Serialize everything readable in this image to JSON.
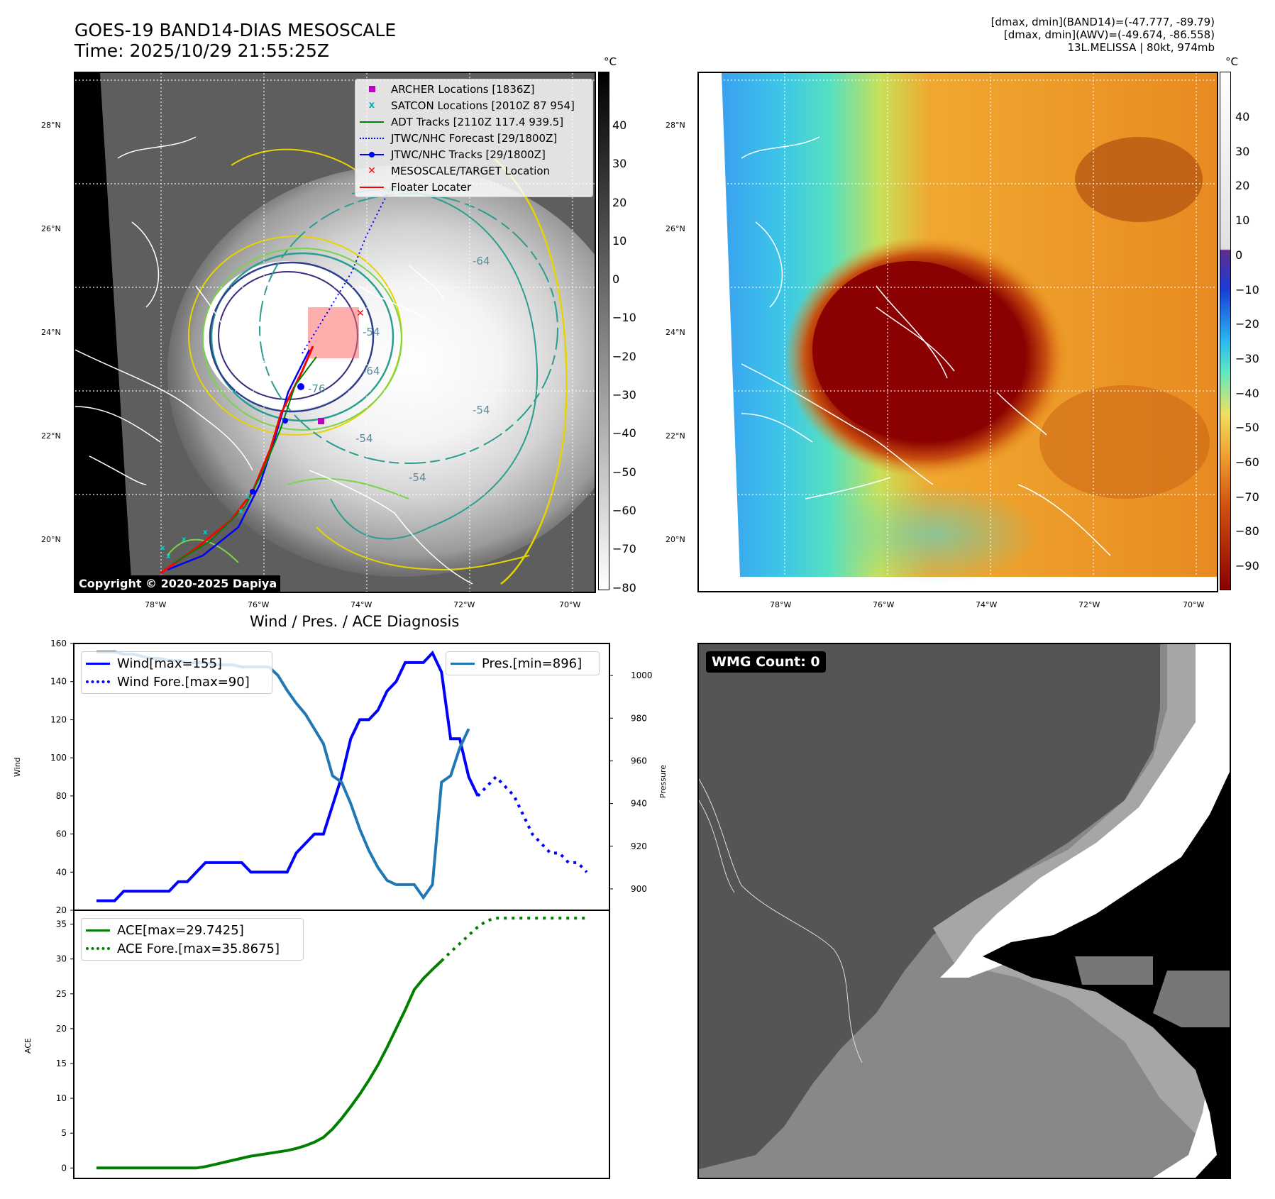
{
  "header": {
    "title_line1": "GOES-19 BAND14-DIAS MESOSCALE",
    "title_line2": "Time: 2025/10/29 21:55:25Z",
    "info_line1": "[dmax, dmin](BAND14)=(-47.777, -89.79)",
    "info_line2": "[dmax, dmin](AWV)=(-49.674, -86.558)",
    "info_line3": "13L.MELISSA | 80kt, 974mb"
  },
  "map_axes": {
    "lat_labels": [
      "28°N",
      "26°N",
      "24°N",
      "22°N",
      "20°N"
    ],
    "lon_labels": [
      "78°W",
      "76°W",
      "74°W",
      "72°W",
      "70°W"
    ]
  },
  "colorbar_left": {
    "unit": "°C",
    "ticks": [
      "40",
      "30",
      "20",
      "10",
      "0",
      "−10",
      "−20",
      "−30",
      "−40",
      "−50",
      "−60",
      "−70",
      "−80"
    ]
  },
  "colorbar_right": {
    "unit": "°C",
    "ticks": [
      "40",
      "30",
      "20",
      "10",
      "0",
      "−10",
      "−20",
      "−30",
      "−40",
      "−50",
      "−60",
      "−70",
      "−80",
      "−90"
    ]
  },
  "map_legend": [
    {
      "label": "ARCHER Locations [1836Z]",
      "color": "#c000c0",
      "marker": "square"
    },
    {
      "label": "SATCON Locations [2010Z 87 954]",
      "color": "#00b0c0",
      "marker": "x"
    },
    {
      "label": "ADT Tracks [2110Z 117.4 939.5]",
      "color": "#008000",
      "marker": "line"
    },
    {
      "label": "JTWC/NHC Forecast [29/1800Z]",
      "color": "#0000ff",
      "marker": "dotted"
    },
    {
      "label": "JTWC/NHC Tracks [29/1800Z]",
      "color": "#0000ff",
      "marker": "line-dot"
    },
    {
      "label": "MESOSCALE/TARGET Location",
      "color": "#ff0000",
      "marker": "x"
    },
    {
      "label": "Floater Locater",
      "color": "#ff0000",
      "marker": "line"
    }
  ],
  "contour_labels": [
    "-54",
    "-64",
    "-76",
    "-54",
    "-54",
    "-64",
    "-54"
  ],
  "copyright": "Copyright © 2020-2025 Dapiya",
  "wmg_label": "WMG Count: 0",
  "chart_data": [
    {
      "type": "line",
      "title": "Wind / Pres. / ACE Diagnosis",
      "ylabel": "Wind",
      "y2label": "Pressure",
      "ylim": [
        20,
        160
      ],
      "y2lim": [
        890,
        1015
      ],
      "yticks": [
        "160",
        "140",
        "120",
        "100",
        "80",
        "60",
        "40",
        "20"
      ],
      "y2ticks": [
        "1000",
        "980",
        "960",
        "940",
        "920",
        "900"
      ],
      "series": [
        {
          "name": "Wind[max=155]",
          "color": "#0000ff",
          "style": "solid",
          "values": [
            25,
            25,
            25,
            30,
            30,
            30,
            30,
            30,
            30,
            35,
            35,
            40,
            45,
            45,
            45,
            45,
            45,
            40,
            40,
            40,
            40,
            40,
            50,
            55,
            60,
            60,
            75,
            90,
            110,
            120,
            120,
            125,
            135,
            140,
            150,
            150,
            150,
            155,
            145,
            110,
            110,
            90,
            80
          ]
        },
        {
          "name": "Wind Fore.[max=90]",
          "color": "#0000ff",
          "style": "dotted",
          "start_index": 42,
          "values": [
            80,
            85,
            90,
            85,
            80,
            70,
            60,
            55,
            50,
            50,
            45,
            45,
            40
          ]
        },
        {
          "name": "Pres.[min=896]",
          "color": "#1f77b4",
          "style": "solid",
          "axis": "right",
          "values": [
            1011,
            1011,
            1011,
            1010,
            1010,
            1009,
            1008,
            1008,
            1007,
            1007,
            1006,
            1006,
            1006,
            1005,
            1005,
            1005,
            1004,
            1004,
            1004,
            1004,
            1000,
            993,
            987,
            982,
            975,
            968,
            953,
            950,
            940,
            928,
            918,
            910,
            904,
            902,
            902,
            902,
            896,
            902,
            950,
            953,
            966,
            975
          ]
        }
      ]
    },
    {
      "type": "line",
      "ylabel": "ACE",
      "ylim": [
        -1.5,
        37
      ],
      "yticks": [
        "35",
        "30",
        "25",
        "20",
        "15",
        "10",
        "5",
        "0"
      ],
      "series": [
        {
          "name": "ACE[max=29.7425]",
          "color": "#008000",
          "style": "solid",
          "values": [
            0,
            0,
            0,
            0,
            0,
            0,
            0,
            0,
            0,
            0,
            0,
            0,
            0.2,
            0.5,
            0.8,
            1.1,
            1.4,
            1.7,
            1.9,
            2.1,
            2.3,
            2.5,
            2.8,
            3.2,
            3.7,
            4.4,
            5.6,
            7.1,
            8.8,
            10.6,
            12.6,
            14.8,
            17.3,
            20.0,
            22.7,
            25.6,
            27.2,
            28.5,
            29.74
          ]
        },
        {
          "name": "ACE Fore.[max=35.8675]",
          "color": "#008000",
          "style": "dotted",
          "start_index": 38,
          "values": [
            29.74,
            31.0,
            32.2,
            33.4,
            34.6,
            35.5,
            35.87,
            35.87,
            35.87,
            35.87,
            35.87,
            35.87,
            35.87,
            35.87,
            35.87,
            35.87,
            35.87
          ]
        }
      ]
    }
  ]
}
